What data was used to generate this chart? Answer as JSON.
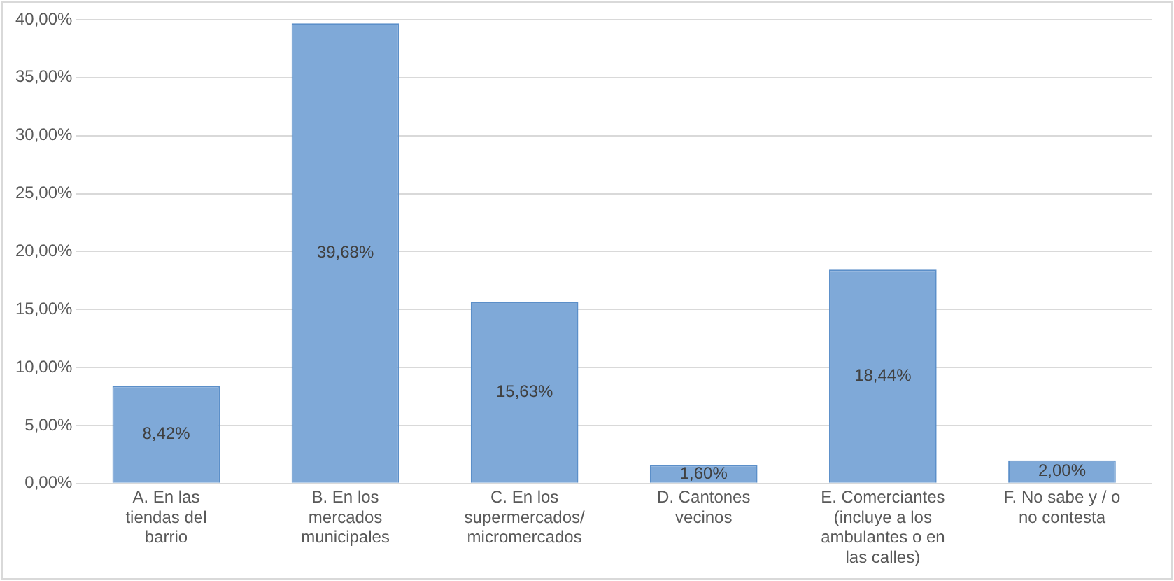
{
  "chart_data": {
    "type": "bar",
    "categories": [
      "A. En las tiendas del barrio",
      "B. En los mercados municipales",
      "C. En los supermercados/ micromercados",
      "D. Cantones vecinos",
      "E. Comerciantes (incluye a los ambulantes o en las calles)",
      "F. No sabe y / o no contesta"
    ],
    "values": [
      8.42,
      39.68,
      15.63,
      1.6,
      18.44,
      2.0
    ],
    "value_labels": [
      "8,42%",
      "39,68%",
      "15,63%",
      "1,60%",
      "18,44%",
      "2,00%"
    ],
    "color": "#7fa9d8",
    "ylim": [
      0,
      40
    ],
    "yticks": [
      {
        "value": 0,
        "label": "0,00%"
      },
      {
        "value": 5,
        "label": "5,00%"
      },
      {
        "value": 10,
        "label": "10,00%"
      },
      {
        "value": 15,
        "label": "15,00%"
      },
      {
        "value": 20,
        "label": "20,00%"
      },
      {
        "value": 25,
        "label": "25,00%"
      },
      {
        "value": 30,
        "label": "30,00%"
      },
      {
        "value": 35,
        "label": "35,00%"
      },
      {
        "value": 40,
        "label": "40,00%"
      }
    ],
    "grid": "y",
    "legend": false
  }
}
